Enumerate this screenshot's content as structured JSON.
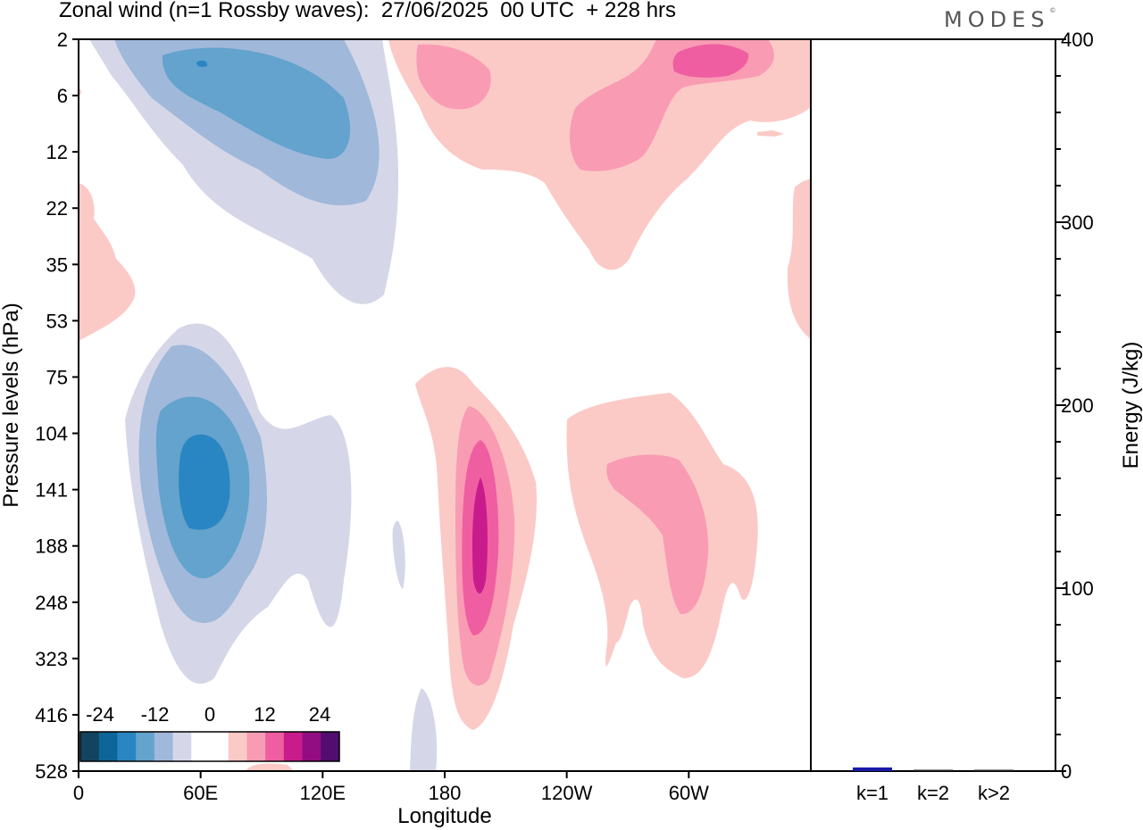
{
  "chart_data": [
    {
      "type": "heatmap",
      "title": "Zonal wind (n=1 Rossby waves):  27/06/2025  00 UTC  + 228 hrs",
      "xlabel": "Longitude",
      "ylabel": "Pressure levels (hPa)",
      "x_ticks": [
        "0",
        "60E",
        "120E",
        "180",
        "120W",
        "60W"
      ],
      "y_ticks": [
        "2",
        "6",
        "12",
        "22",
        "35",
        "53",
        "75",
        "104",
        "141",
        "188",
        "248",
        "323",
        "416",
        "528"
      ],
      "colorbar": {
        "tick_labels": [
          "-24",
          "-12",
          "0",
          "12",
          "24"
        ],
        "colors": [
          "#12445f",
          "#0e6598",
          "#2a86c2",
          "#63a3cd",
          "#a0b8da",
          "#d5d7e8",
          "#ffffff",
          "#ffffff",
          "#fbcac6",
          "#f99bb3",
          "#ef5ea1",
          "#c81c8c",
          "#930d82",
          "#520d70"
        ]
      },
      "colors": {
        "blue_1": "#d5d7e8",
        "blue_2": "#a0b8da",
        "blue_3": "#63a3cd",
        "blue_4": "#2a86c2",
        "pink_1": "#fbcac6",
        "pink_2": "#f99bb3",
        "pink_3": "#ef5ea1",
        "pink_4": "#c81c8c"
      }
    },
    {
      "type": "bar",
      "ylabel": "Energy (J/kg)",
      "ylim": [
        0,
        400
      ],
      "y_ticks": [
        "0",
        "100",
        "200",
        "300",
        "400"
      ],
      "categories": [
        "k=1",
        "k=2",
        "k>2"
      ],
      "values": [
        2,
        0.5,
        0.5
      ],
      "bar_color": "#1a1aa8"
    }
  ],
  "branding": {
    "text": "MODES",
    "mark": "©"
  }
}
